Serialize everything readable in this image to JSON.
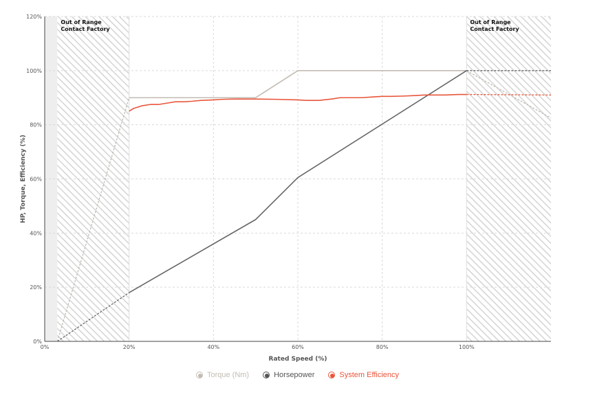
{
  "chart_data": {
    "type": "line",
    "xlabel": "Rated Speed (%)",
    "ylabel": "HP, Torque, Efficiency (%)",
    "xlim": [
      0,
      120
    ],
    "ylim": [
      0,
      120
    ],
    "x_ticks": [
      "0%",
      "20%",
      "40%",
      "60%",
      "80%",
      "100%"
    ],
    "y_ticks": [
      "0%",
      "20%",
      "40%",
      "60%",
      "80%",
      "100%",
      "120%"
    ],
    "grid": true,
    "legend_position": "bottom",
    "annotations": [
      {
        "text": [
          "Out of Range",
          "Contact Factory"
        ],
        "x_range": [
          3,
          20
        ]
      },
      {
        "text": [
          "Out of Range",
          "Contact Factory"
        ],
        "x_range": [
          100,
          120
        ]
      }
    ],
    "series": [
      {
        "name": "Torque (Nm)",
        "color": "#c2bbb2",
        "solid": {
          "x": [
            20,
            50,
            60,
            100
          ],
          "y": [
            90,
            90,
            100,
            100
          ]
        },
        "dashed_low": {
          "x": [
            3,
            20
          ],
          "y": [
            0,
            90
          ]
        },
        "dashed_high": {
          "x": [
            100,
            120
          ],
          "y": [
            100,
            82.5
          ]
        }
      },
      {
        "name": "Horsepower",
        "color": "#666666",
        "solid": {
          "x": [
            20,
            50,
            60,
            100
          ],
          "y": [
            18,
            45,
            60.5,
            100
          ]
        },
        "dashed_low": {
          "x": [
            3,
            20
          ],
          "y": [
            0,
            18
          ]
        },
        "dashed_high": {
          "x": [
            100,
            120
          ],
          "y": [
            100,
            100
          ]
        }
      },
      {
        "name": "System Efficiency",
        "color": "#e8553a",
        "solid": {
          "x": [
            20,
            21,
            23,
            25,
            27,
            29,
            31,
            33,
            35,
            37,
            40,
            42,
            45,
            48,
            50,
            55,
            60,
            62,
            65,
            68,
            70,
            72,
            75,
            78,
            80,
            82,
            85,
            88,
            90,
            92,
            95,
            98,
            100
          ],
          "y": [
            85,
            86,
            87,
            87.5,
            87.5,
            88,
            88.5,
            88.5,
            88.7,
            89,
            89.2,
            89.4,
            89.5,
            89.5,
            89.5,
            89.4,
            89.2,
            89,
            89,
            89.5,
            90,
            90,
            90,
            90.3,
            90.5,
            90.5,
            90.6,
            90.8,
            91,
            91,
            91,
            91.2,
            91.2
          ]
        },
        "dashed_high": {
          "x": [
            100,
            120
          ],
          "y": [
            91.2,
            91
          ]
        }
      }
    ]
  },
  "legend": {
    "items": [
      {
        "label": "Torque (Nm)",
        "color": "#c2bbb2"
      },
      {
        "label": "Horsepower",
        "color": "#555555"
      },
      {
        "label": "System Efficiency",
        "color": "#e8553a"
      }
    ]
  }
}
